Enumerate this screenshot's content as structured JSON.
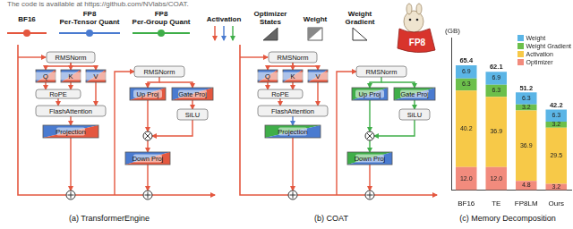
{
  "header_text": "The code is available at https://github.com/NVlabs/COAT.",
  "key": [
    {
      "lines": [
        "BF16"
      ]
    },
    {
      "lines": [
        "FP8",
        "Per-Tensor Quant"
      ]
    },
    {
      "lines": [
        "FP8",
        "Per-Group Quant"
      ]
    },
    {
      "lines": [
        "Activation"
      ]
    },
    {
      "lines": [
        "Optimizer",
        "States"
      ]
    },
    {
      "lines": [
        "Weight"
      ]
    },
    {
      "lines": [
        "Weight",
        "Gradient"
      ]
    }
  ],
  "mascot_text": "FP8",
  "panels": [
    {
      "caption": "(a) TransformerEngine",
      "attention": {
        "norm": "RMSNorm",
        "q": "Q",
        "k": "K",
        "v": "V",
        "rope": "RoPE",
        "attn": "FlashAttention",
        "proj": "Projection"
      },
      "mlp": {
        "norm": "RMSNorm",
        "up": "Up Proj",
        "gate": "Gate Proj",
        "act": "SiLU",
        "down": "Down Proj"
      }
    },
    {
      "caption": "(b) COAT",
      "attention": {
        "norm": "RMSNorm",
        "q": "Q",
        "k": "K",
        "v": "V",
        "rope": "RoPE",
        "attn": "FlashAttention",
        "proj": "Projection"
      },
      "mlp": {
        "norm": "RMSNorm",
        "up": "Up Proj",
        "gate": "Gate Proj",
        "act": "SiLU",
        "down": "Down Proj"
      }
    }
  ],
  "chart_data": {
    "type": "bar",
    "title": "(c) Memory Decomposition",
    "y_label": "(GB)",
    "stacked": true,
    "data_labels": true,
    "tick_labels": "x",
    "grid": false,
    "legend": "top-right",
    "categories": [
      "BF16",
      "TE",
      "FP8LM",
      "Ours"
    ],
    "ylim": [
      0,
      80
    ],
    "series": [
      {
        "name": "Optimizer",
        "color": "#f28b7d",
        "values": [
          12.0,
          12.0,
          4.8,
          3.2
        ],
        "value_labels": [
          "12.0",
          "12.0",
          "4.8",
          "3.2"
        ]
      },
      {
        "name": "Activation",
        "color": "#f7c948",
        "values": [
          40.2,
          36.9,
          36.9,
          29.5
        ],
        "value_labels": [
          "40.2",
          "36.9",
          "36.9",
          "29.5"
        ]
      },
      {
        "name": "Weight Gradient",
        "color": "#6cbf4b",
        "values": [
          6.3,
          6.3,
          3.2,
          3.2
        ],
        "value_labels": [
          "6.3",
          "6.3",
          "3.2",
          "3.2"
        ]
      },
      {
        "name": "Weight",
        "color": "#5bb5e6",
        "values": [
          6.9,
          6.9,
          6.3,
          6.3
        ],
        "value_labels": [
          "6.9",
          "6.9",
          "6.3",
          "6.3"
        ]
      }
    ],
    "totals": [
      65.4,
      62.1,
      51.2,
      42.2
    ]
  }
}
